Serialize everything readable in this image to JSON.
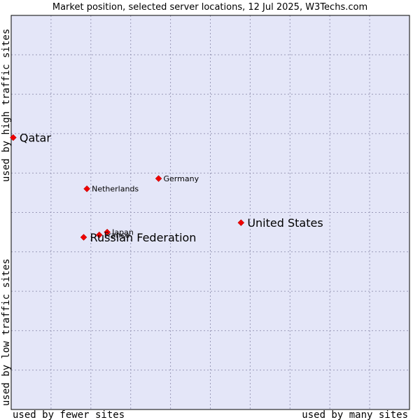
{
  "chart_data": {
    "type": "scatter",
    "title": "Market position, selected server locations, 12 Jul 2025, W3Techs.com",
    "xlabel_left": "used by fewer sites",
    "xlabel_right": "used by many sites",
    "ylabel_bottom": "used by low traffic sites",
    "ylabel_top": "used by high traffic sites",
    "xlim": [
      0,
      100
    ],
    "ylim": [
      0,
      100
    ],
    "grid": true,
    "colors": {
      "plot_background": "#e4e6f8",
      "point": "#ee0000",
      "grid": "#9a9ab8",
      "frame": "#000000"
    },
    "points": [
      {
        "label": "Qatar",
        "x": 0.5,
        "y": 69.0,
        "size": "large"
      },
      {
        "label": "Germany",
        "x": 37.0,
        "y": 58.6,
        "size": "small"
      },
      {
        "label": "Netherlands",
        "x": 19.0,
        "y": 56.0,
        "size": "small"
      },
      {
        "label": "United States",
        "x": 57.7,
        "y": 47.4,
        "size": "large"
      },
      {
        "label": "Japan",
        "x": 24.1,
        "y": 45.0,
        "size": "small"
      },
      {
        "label": "France",
        "x": 22.1,
        "y": 44.3,
        "size": "small"
      },
      {
        "label": "Russian Federation",
        "x": 18.2,
        "y": 43.7,
        "size": "large"
      }
    ]
  }
}
